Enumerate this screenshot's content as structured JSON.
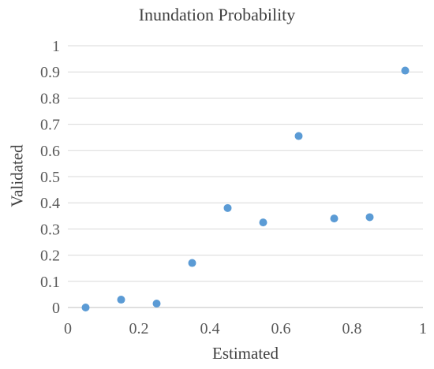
{
  "chart_data": {
    "type": "scatter",
    "title": "Inundation Probability",
    "xlabel": "Estimated",
    "ylabel": "Validated",
    "xlim": [
      0,
      1
    ],
    "ylim": [
      0,
      1
    ],
    "x_ticks": [
      "0",
      "0.2",
      "0.4",
      "0.6",
      "0.8",
      "1"
    ],
    "y_ticks": [
      "0",
      "0.1",
      "0.2",
      "0.3",
      "0.4",
      "0.5",
      "0.6",
      "0.7",
      "0.8",
      "0.9",
      "1"
    ],
    "grid": "horizontal",
    "marker_color": "#5B9BD5",
    "series": [
      {
        "x": [
          0.05,
          0.15,
          0.25,
          0.35,
          0.45,
          0.55,
          0.65,
          0.75,
          0.85,
          0.95
        ],
        "y": [
          0.0,
          0.03,
          0.015,
          0.17,
          0.38,
          0.325,
          0.655,
          0.34,
          0.345,
          0.905
        ]
      }
    ]
  }
}
